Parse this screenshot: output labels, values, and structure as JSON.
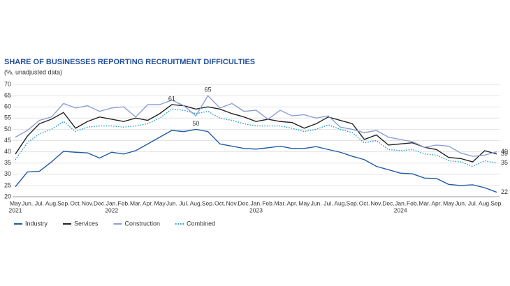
{
  "chart_data": {
    "type": "line",
    "title": "SHARE OF BUSINESSES REPORTING RECRUITMENT DIFFICULTIES",
    "subtitle": "(%, unadjusted data)",
    "categories": [
      "May",
      "Jun.",
      "Jul.",
      "Aug.",
      "Sep.",
      "Oct.",
      "Nov.",
      "Dec.",
      "Jan.",
      "Feb.",
      "Mar.",
      "Apr.",
      "May",
      "Jun.",
      "Jul.",
      "Aug.",
      "Sep.",
      "Oct.",
      "Nov.",
      "Dec.",
      "Jan.",
      "Feb.",
      "Mar.",
      "Apr.",
      "May",
      "Jun.",
      "Jul.",
      "Aug.",
      "Sep.",
      "Oct.",
      "Nov.",
      "Dec.",
      "Jan.",
      "Feb.",
      "Mar.",
      "Apr.",
      "May",
      "Jun.",
      "Jul.",
      "Aug.",
      "Sep."
    ],
    "category_years": [
      "2021",
      null,
      null,
      null,
      null,
      null,
      null,
      null,
      "2022",
      null,
      null,
      null,
      null,
      null,
      null,
      null,
      null,
      null,
      null,
      null,
      "2023",
      null,
      null,
      null,
      null,
      null,
      null,
      null,
      null,
      null,
      null,
      null,
      "2024",
      null,
      null,
      null,
      null,
      null,
      null,
      null,
      null
    ],
    "ylim": [
      20,
      70
    ],
    "yticks": [
      20,
      25,
      30,
      35,
      40,
      45,
      50,
      55,
      60,
      65,
      70
    ],
    "grid": true,
    "series": [
      {
        "name": "Industry",
        "color": "#1f5aa6",
        "dash": "solid",
        "values": [
          24.5,
          31,
          31.3,
          35.5,
          40.2,
          39.8,
          39.5,
          37.2,
          39.8,
          39,
          40.5,
          43.5,
          46.5,
          49.5,
          49,
          50,
          49,
          43.5,
          42.5,
          41.5,
          41.2,
          41.8,
          42.5,
          41.5,
          41.5,
          42.3,
          41,
          39.8,
          38,
          36.5,
          33.5,
          32,
          30.5,
          30.2,
          28.3,
          28.1,
          25.5,
          25,
          25.3,
          24,
          22
        ],
        "value_labels": [
          null,
          null,
          null,
          null,
          null,
          null,
          null,
          null,
          null,
          null,
          null,
          null,
          null,
          null,
          null,
          "50",
          null,
          null,
          null,
          null,
          null,
          null,
          null,
          null,
          null,
          null,
          null,
          null,
          null,
          null,
          null,
          null,
          null,
          null,
          null,
          null,
          null,
          null,
          null,
          null,
          "22"
        ]
      },
      {
        "name": "Services",
        "color": "#222222",
        "dash": "solid",
        "values": [
          39,
          47,
          52.5,
          54.5,
          57.5,
          50.5,
          53.5,
          55.5,
          54.5,
          53.5,
          55,
          54,
          57,
          61,
          60.5,
          59,
          60,
          59,
          57,
          55.5,
          53.5,
          54.5,
          53.5,
          53,
          50.5,
          52.5,
          55.5,
          54,
          52.5,
          45.5,
          47.5,
          43,
          43.5,
          44,
          42,
          41,
          37.5,
          37,
          35.5,
          40.5,
          39
        ],
        "value_labels": [
          null,
          null,
          null,
          null,
          null,
          null,
          null,
          null,
          null,
          null,
          null,
          null,
          null,
          "61",
          null,
          null,
          null,
          null,
          null,
          null,
          null,
          null,
          null,
          null,
          null,
          null,
          null,
          null,
          null,
          null,
          null,
          null,
          null,
          null,
          null,
          null,
          null,
          null,
          null,
          null,
          "39"
        ]
      },
      {
        "name": "Construction",
        "color": "#8c9fd6",
        "dash": "solid",
        "values": [
          46.5,
          49.5,
          54,
          55.5,
          61.5,
          59.5,
          60.5,
          58,
          59.5,
          60,
          55.5,
          61,
          61,
          63,
          60.5,
          56,
          65,
          59.5,
          61.5,
          58,
          58.5,
          54.5,
          58.5,
          56,
          56.5,
          55,
          56,
          51,
          50,
          48.5,
          49.5,
          46.5,
          45.5,
          44.5,
          42,
          43,
          42.5,
          39.5,
          38,
          38.5,
          40
        ],
        "value_labels": [
          null,
          null,
          null,
          null,
          null,
          null,
          null,
          null,
          null,
          null,
          null,
          null,
          null,
          null,
          null,
          null,
          "65",
          null,
          null,
          null,
          null,
          null,
          null,
          null,
          null,
          null,
          null,
          null,
          null,
          null,
          null,
          null,
          null,
          null,
          null,
          null,
          null,
          null,
          null,
          null,
          "40"
        ]
      },
      {
        "name": "Combined",
        "color": "#1a9bc9",
        "dash": "dotted",
        "values": [
          36.5,
          44,
          48,
          50,
          53.5,
          49,
          51,
          51.5,
          51.5,
          51,
          51.5,
          52.5,
          55,
          59,
          58.5,
          57,
          58,
          55,
          54,
          52.5,
          51.5,
          51.5,
          51.5,
          50.5,
          49,
          50,
          52,
          50,
          48.5,
          44,
          45,
          41,
          40.5,
          41,
          39,
          38.5,
          36,
          35.5,
          33.5,
          36,
          35
        ],
        "value_labels": [
          null,
          null,
          null,
          null,
          null,
          null,
          null,
          null,
          null,
          null,
          null,
          null,
          null,
          null,
          null,
          null,
          null,
          null,
          null,
          null,
          null,
          null,
          null,
          null,
          null,
          null,
          null,
          null,
          null,
          null,
          null,
          null,
          null,
          null,
          null,
          null,
          null,
          null,
          null,
          null,
          "35"
        ]
      }
    ]
  }
}
